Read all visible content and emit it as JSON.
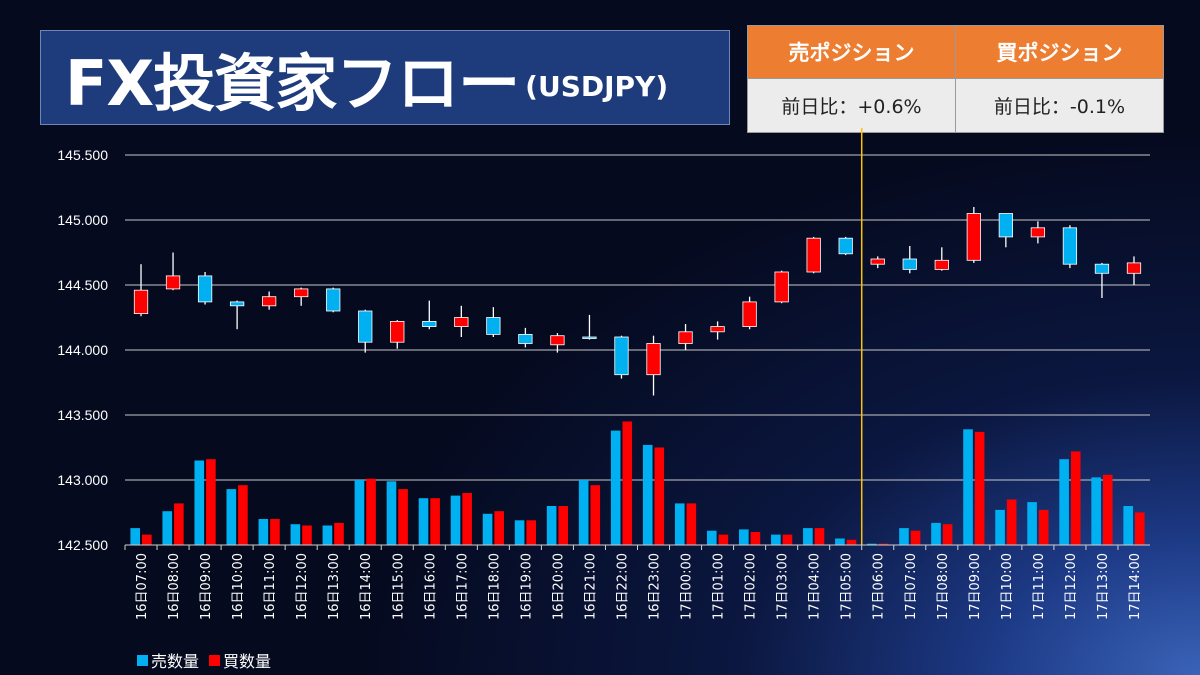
{
  "header": {
    "title": "FX投資家フロー",
    "pair": "(USDJPY)"
  },
  "positions": {
    "sell_label": "売ポジション",
    "sell_value": "前日比：+0.6%",
    "buy_label": "買ポジション",
    "buy_value": "前日比：-0.1%"
  },
  "legend": {
    "sell": "売数量",
    "buy": "買数量"
  },
  "colors": {
    "sell": "#00b0f0",
    "buy": "#ff0000",
    "marker_line": "#ffc000",
    "header_orange": "#ec7d31",
    "title_bg": "#1e3c7c"
  },
  "chart_data": {
    "type": "candlestick_with_bars",
    "ylim": [
      142.5,
      145.5
    ],
    "yticks": [
      "145.500",
      "145.000",
      "144.500",
      "144.000",
      "143.500",
      "143.000",
      "142.500"
    ],
    "ytick_values": [
      145.5,
      145.0,
      144.5,
      144.0,
      143.5,
      143.0,
      142.5
    ],
    "categories": [
      "16日07:00",
      "16日08:00",
      "16日09:00",
      "16日10:00",
      "16日11:00",
      "16日12:00",
      "16日13:00",
      "16日14:00",
      "16日15:00",
      "16日16:00",
      "16日17:00",
      "16日18:00",
      "16日19:00",
      "16日20:00",
      "16日21:00",
      "16日22:00",
      "16日23:00",
      "17日00:00",
      "17日01:00",
      "17日02:00",
      "17日03:00",
      "17日04:00",
      "17日05:00",
      "17日06:00",
      "17日07:00",
      "17日08:00",
      "17日09:00",
      "17日10:00",
      "17日11:00",
      "17日12:00",
      "17日13:00",
      "17日14:00"
    ],
    "candles": [
      {
        "o": 144.28,
        "h": 144.66,
        "l": 144.26,
        "c": 144.46
      },
      {
        "o": 144.47,
        "h": 144.75,
        "l": 144.46,
        "c": 144.57
      },
      {
        "o": 144.57,
        "h": 144.6,
        "l": 144.35,
        "c": 144.37
      },
      {
        "o": 144.37,
        "h": 144.38,
        "l": 144.16,
        "c": 144.34
      },
      {
        "o": 144.34,
        "h": 144.45,
        "l": 144.31,
        "c": 144.41
      },
      {
        "o": 144.41,
        "h": 144.48,
        "l": 144.34,
        "c": 144.47
      },
      {
        "o": 144.47,
        "h": 144.48,
        "l": 144.29,
        "c": 144.3
      },
      {
        "o": 144.3,
        "h": 144.31,
        "l": 143.98,
        "c": 144.06
      },
      {
        "o": 144.06,
        "h": 144.23,
        "l": 144.01,
        "c": 144.22
      },
      {
        "o": 144.22,
        "h": 144.38,
        "l": 144.16,
        "c": 144.18
      },
      {
        "o": 144.18,
        "h": 144.34,
        "l": 144.1,
        "c": 144.25
      },
      {
        "o": 144.25,
        "h": 144.33,
        "l": 144.1,
        "c": 144.12
      },
      {
        "o": 144.12,
        "h": 144.17,
        "l": 144.02,
        "c": 144.05
      },
      {
        "o": 144.04,
        "h": 144.13,
        "l": 143.98,
        "c": 144.11
      },
      {
        "o": 144.1,
        "h": 144.27,
        "l": 144.08,
        "c": 144.09
      },
      {
        "o": 144.1,
        "h": 144.11,
        "l": 143.78,
        "c": 143.81
      },
      {
        "o": 143.81,
        "h": 144.11,
        "l": 143.65,
        "c": 144.05
      },
      {
        "o": 144.05,
        "h": 144.2,
        "l": 144.0,
        "c": 144.14
      },
      {
        "o": 144.14,
        "h": 144.22,
        "l": 144.08,
        "c": 144.18
      },
      {
        "o": 144.18,
        "h": 144.41,
        "l": 144.16,
        "c": 144.37
      },
      {
        "o": 144.37,
        "h": 144.61,
        "l": 144.36,
        "c": 144.6
      },
      {
        "o": 144.6,
        "h": 144.87,
        "l": 144.59,
        "c": 144.86
      },
      {
        "o": 144.86,
        "h": 144.87,
        "l": 144.73,
        "c": 144.74
      },
      {
        "o": 144.66,
        "h": 144.72,
        "l": 144.63,
        "c": 144.7
      },
      {
        "o": 144.7,
        "h": 144.8,
        "l": 144.59,
        "c": 144.62
      },
      {
        "o": 144.62,
        "h": 144.79,
        "l": 144.61,
        "c": 144.69
      },
      {
        "o": 144.69,
        "h": 145.1,
        "l": 144.67,
        "c": 145.05
      },
      {
        "o": 145.05,
        "h": 145.05,
        "l": 144.79,
        "c": 144.87
      },
      {
        "o": 144.87,
        "h": 144.99,
        "l": 144.82,
        "c": 144.94
      },
      {
        "o": 144.94,
        "h": 144.96,
        "l": 144.63,
        "c": 144.66
      },
      {
        "o": 144.66,
        "h": 144.67,
        "l": 144.4,
        "c": 144.59
      },
      {
        "o": 144.59,
        "h": 144.72,
        "l": 144.5,
        "c": 144.67
      }
    ],
    "series": [
      {
        "name": "売数量",
        "values": [
          142.63,
          142.76,
          143.15,
          142.93,
          142.7,
          142.66,
          142.65,
          143.0,
          142.99,
          142.86,
          142.88,
          142.74,
          142.69,
          142.8,
          143.0,
          143.38,
          143.27,
          142.82,
          142.61,
          142.62,
          142.58,
          142.63,
          142.55,
          142.51,
          142.63,
          142.67,
          143.39,
          142.77,
          142.83,
          143.16,
          143.02,
          142.8
        ]
      },
      {
        "name": "買数量",
        "values": [
          142.58,
          142.82,
          143.16,
          142.96,
          142.7,
          142.65,
          142.67,
          143.01,
          142.93,
          142.86,
          142.9,
          142.76,
          142.69,
          142.8,
          142.96,
          143.45,
          143.25,
          142.82,
          142.58,
          142.6,
          142.58,
          142.63,
          142.54,
          142.51,
          142.61,
          142.66,
          143.37,
          142.85,
          142.77,
          143.22,
          143.04,
          142.75
        ]
      }
    ],
    "marker_after_category": "17日05:00",
    "grid": true
  }
}
